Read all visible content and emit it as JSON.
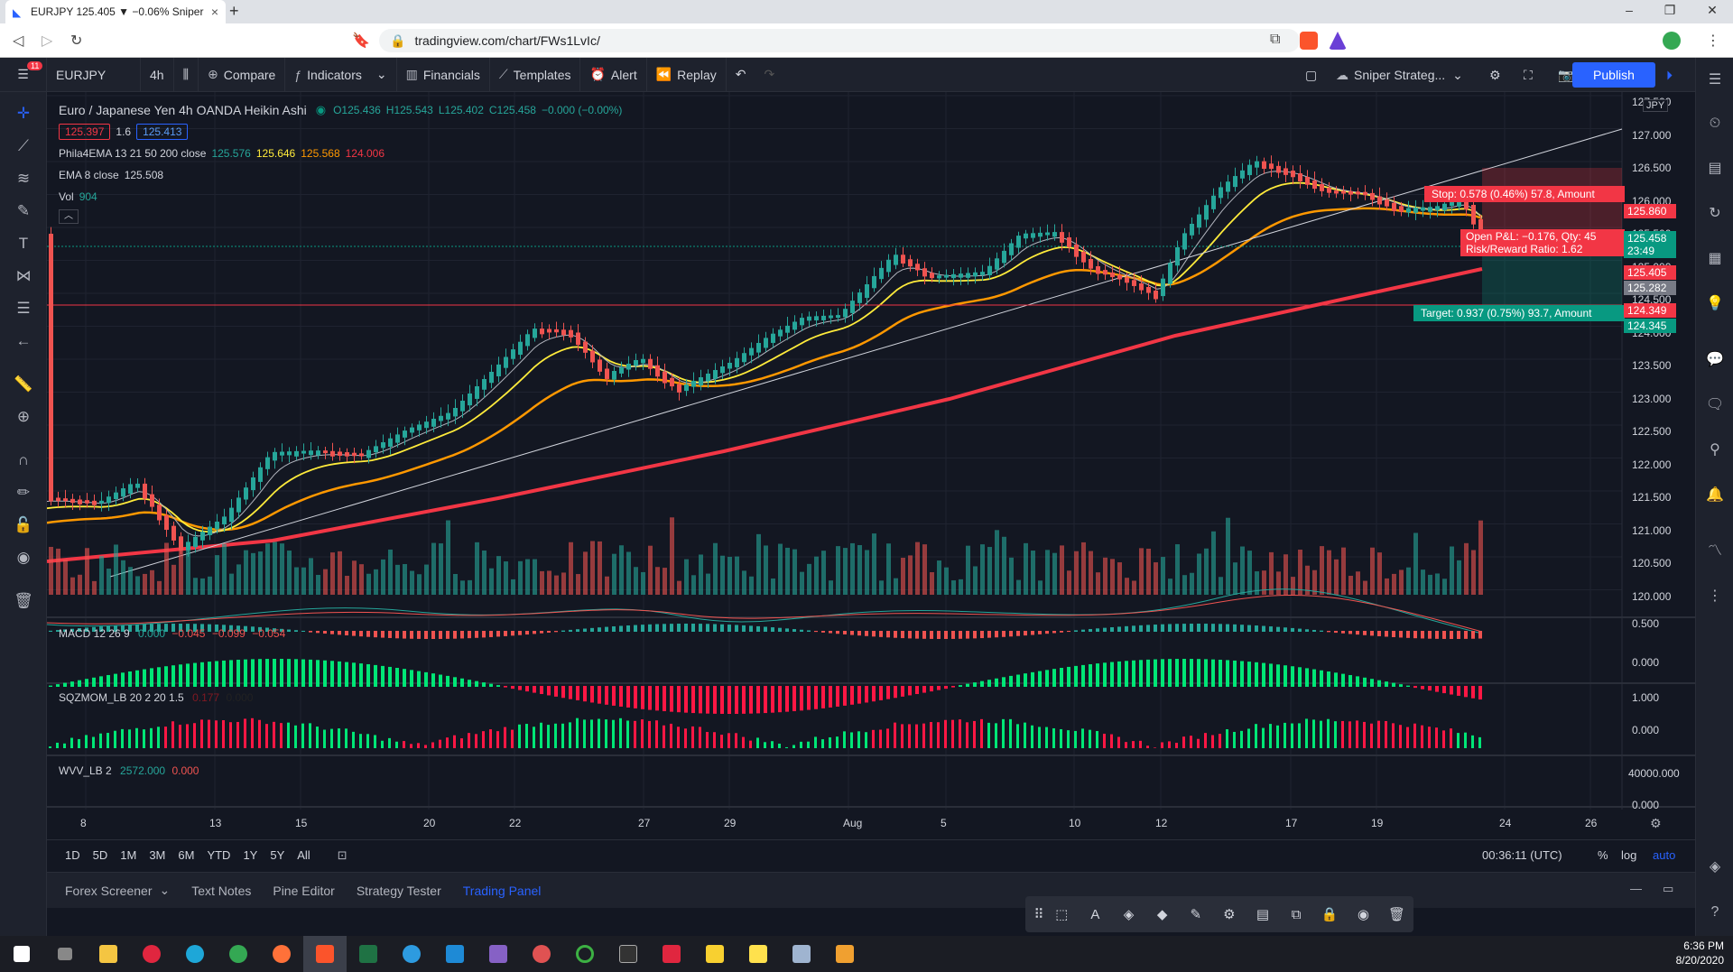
{
  "browser": {
    "tab_title": "EURJPY 125.405 ▼ −0.06% Sniper",
    "url": "tradingview.com/chart/FWs1LvIc/"
  },
  "toolbar": {
    "symbol": "EURJPY",
    "interval": "4h",
    "compare": "Compare",
    "indicators": "Indicators",
    "financials": "Financials",
    "templates": "Templates",
    "alert": "Alert",
    "replay": "Replay",
    "layout": "Sniper Strateg...",
    "publish": "Publish",
    "badge": "11"
  },
  "legend": {
    "title": "Euro / Japanese Yen  4h  OANDA  Heikin Ashi",
    "open": "O125.436",
    "high": "H125.543",
    "low": "L125.402",
    "close": "C125.458",
    "change": "−0.000 (−0.00%)",
    "bid": "125.397",
    "spread": "1.6",
    "ask": "125.413",
    "ema_name": "Phila4EMA 13 21 50 200 close",
    "ema_v1": "125.576",
    "ema_v2": "125.646",
    "ema_v3": "125.568",
    "ema_v4": "124.006",
    "ema8_name": "EMA 8 close",
    "ema8_v": "125.508",
    "vol_name": "Vol",
    "vol_v": "904"
  },
  "price_axis": {
    "currency": "JPY",
    "ticks": [
      "127.500",
      "127.000",
      "126.500",
      "126.000",
      "125.500",
      "125.000",
      "124.500",
      "124.000",
      "123.500",
      "123.000",
      "122.500",
      "122.000",
      "121.500",
      "121.000",
      "120.500",
      "120.000"
    ],
    "labels": [
      {
        "text": "125.860",
        "color": "#f23645"
      },
      {
        "text": "125.458",
        "color": "#089981"
      },
      {
        "text": "23:49",
        "color": "#089981"
      },
      {
        "text": "125.405",
        "color": "#f23645"
      },
      {
        "text": "125.282",
        "color": "#787b86"
      },
      {
        "text": "124.349",
        "color": "#f23645"
      },
      {
        "text": "124.345",
        "color": "#089981"
      }
    ]
  },
  "position": {
    "stop": "Stop: 0.578 (0.46%) 57.8, Amount",
    "pnl": "Open P&L: −0.176, Qty: 45",
    "rr": "Risk/Reward Ratio: 1.62",
    "target": "Target: 0.937 (0.75%) 93.7, Amount"
  },
  "panes": {
    "macd": {
      "name": "MACD 12 26 9",
      "v1": "0.000",
      "v2": "−0.045",
      "v3": "−0.099",
      "v4": "−0.054",
      "axis": [
        "0.500",
        "0.000"
      ]
    },
    "sqz": {
      "name": "SQZMOM_LB 20 2 20 1.5",
      "v1": "0.177",
      "v2": "0.000",
      "axis": [
        "1.000",
        "0.000"
      ]
    },
    "wvv": {
      "name": "WVV_LB 2",
      "v1": "2572.000",
      "v2": "0.000",
      "axis": [
        "40000.000",
        "0.000"
      ]
    }
  },
  "time_axis": [
    "8",
    "13",
    "15",
    "20",
    "22",
    "27",
    "29",
    "Aug",
    "5",
    "10",
    "12",
    "17",
    "19",
    "24",
    "26"
  ],
  "ranges": [
    "1D",
    "5D",
    "1M",
    "3M",
    "6M",
    "YTD",
    "1Y",
    "5Y",
    "All"
  ],
  "status": {
    "clock": "00:36:11 (UTC)",
    "pct": "%",
    "log": "log",
    "auto": "auto"
  },
  "panel_tabs": [
    "Forex Screener",
    "Text Notes",
    "Pine Editor",
    "Strategy Tester",
    "Trading Panel"
  ],
  "taskbar": {
    "time": "6:36 PM",
    "date": "8/20/2020"
  },
  "colors": {
    "up": "#26a69a",
    "down": "#ef5350",
    "ema13": "#b2b5be",
    "ema21": "#ffeb3b",
    "ema50": "#ff9800",
    "ema200": "#f23645",
    "accent": "#2962ff"
  }
}
